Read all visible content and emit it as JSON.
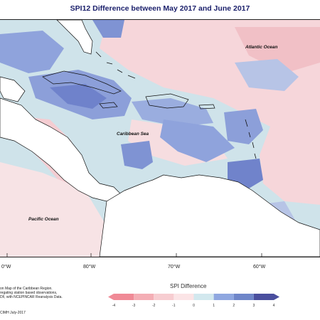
{
  "title": "SPI12 Difference between May 2017 and June 2017",
  "labels": {
    "atlantic": "Atlantic Ocean",
    "caribbean": "Caribbean Sea",
    "pacific": "Pacific Ocean"
  },
  "longitudes": [
    "0°W",
    "80°W",
    "70°W",
    "60°W"
  ],
  "credit_lines": [
    "on Map of the Caribbean Region.",
    "regating station based observations,",
    "DF, with NCEPINCAR Reanalysis Data."
  ],
  "cimh": "CIMH July-2017",
  "legend": {
    "title": "SPI Difference",
    "ticks": [
      "-4",
      "-3",
      "-2",
      "-1",
      "0",
      "1",
      "2",
      "3",
      "4"
    ],
    "colors": [
      "#f08a96",
      "#f4aeb5",
      "#f7cdd1",
      "#fbe4e6",
      "#ffffff",
      "#d2e8ee",
      "#8fa7e0",
      "#6f86c9",
      "#4a4f9e"
    ]
  },
  "colors": {
    "land": "#ffffff",
    "sea_base": "#cfe3ea",
    "positive": "#8c9fd9",
    "strong_positive": "#6d7fc9",
    "negative": "#f4d3d7",
    "strong_negative": "#eeb1b8"
  }
}
